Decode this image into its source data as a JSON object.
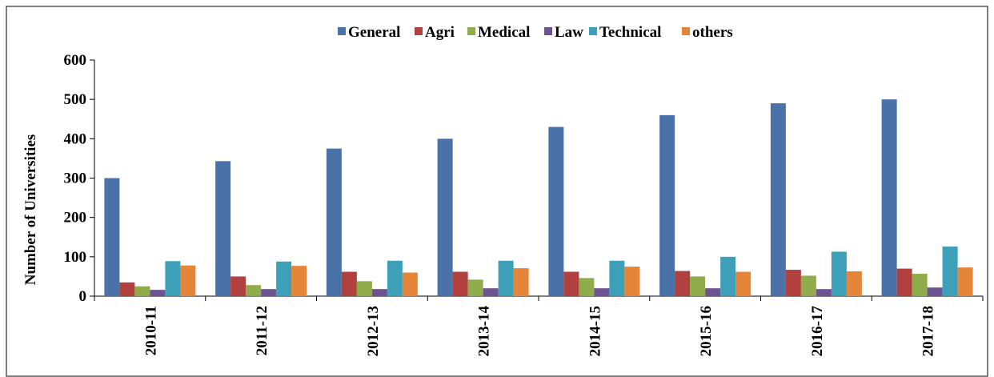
{
  "chart_data": {
    "type": "bar",
    "y_label": "Number of Universities",
    "categories": [
      "2010-11",
      "2011-12",
      "2012-13",
      "2013-14",
      "2014-15",
      "2015-16",
      "2016-17",
      "2017-18"
    ],
    "series": [
      {
        "name": "General",
        "color": "#4a72a8",
        "values": [
          300,
          343,
          375,
          400,
          430,
          460,
          490,
          500
        ]
      },
      {
        "name": "Agri",
        "color": "#b0413e",
        "values": [
          35,
          50,
          62,
          62,
          62,
          64,
          67,
          70
        ]
      },
      {
        "name": "Medical",
        "color": "#8fab4a",
        "values": [
          25,
          28,
          38,
          42,
          46,
          50,
          52,
          57
        ]
      },
      {
        "name": "Law",
        "color": "#6d5391",
        "values": [
          16,
          18,
          18,
          20,
          20,
          20,
          18,
          22
        ]
      },
      {
        "name": "Technical",
        "color": "#3ea0b8",
        "values": [
          89,
          88,
          90,
          90,
          90,
          100,
          113,
          126
        ]
      },
      {
        "name": "others",
        "color": "#e5853a",
        "values": [
          78,
          77,
          60,
          71,
          75,
          62,
          63,
          73
        ]
      }
    ],
    "ylim": [
      0,
      600
    ],
    "yticks": [
      0,
      100,
      200,
      300,
      400,
      500,
      600
    ],
    "grid": false,
    "legend": "top"
  }
}
